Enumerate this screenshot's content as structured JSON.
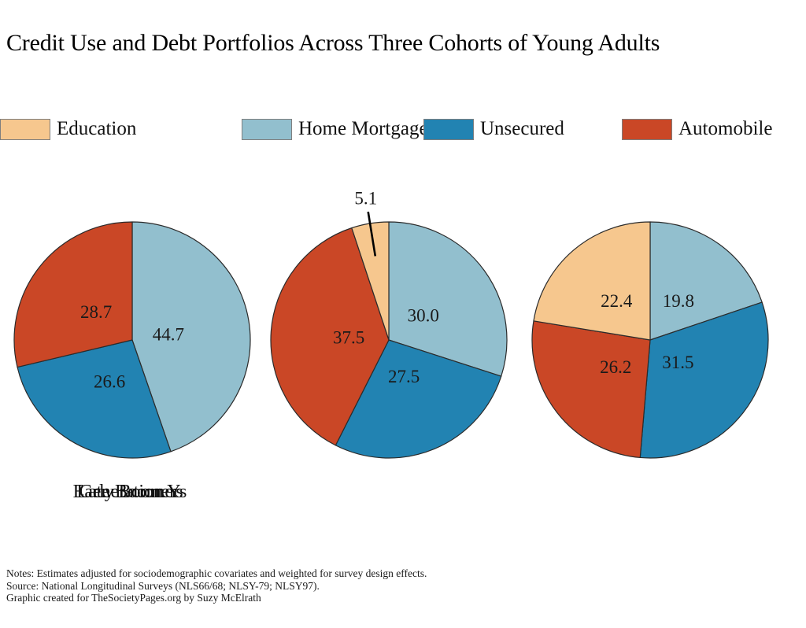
{
  "chart_data": {
    "type": "pie",
    "title": "Credit Use and Debt Portfolios Across Three Cohorts of Young Adults",
    "legend": [
      {
        "label": "Home Mortgage",
        "color": "#92bfce"
      },
      {
        "label": "Unsecured",
        "color": "#2283b2"
      },
      {
        "label": "Automobile",
        "color": "#ca4726"
      },
      {
        "label": "Education",
        "color": "#f6c78e"
      }
    ],
    "slice_border_color": "#2b2b2b",
    "pies": [
      {
        "label": "Early Boomers",
        "slices": [
          {
            "name": "Home Mortgage",
            "value": 44.7,
            "label_r": 0.31
          },
          {
            "name": "Unsecured",
            "value": 26.6,
            "label_r": 0.4
          },
          {
            "name": "Automobile",
            "value": 28.7,
            "label_r": 0.39
          }
        ]
      },
      {
        "label": "Late Boomers",
        "slices": [
          {
            "name": "Home Mortgage",
            "value": 30.0,
            "label_r": 0.36
          },
          {
            "name": "Unsecured",
            "value": 27.5,
            "label_r": 0.33
          },
          {
            "name": "Automobile",
            "value": 37.5,
            "label_r": 0.34
          },
          {
            "name": "Education",
            "value": 5.1,
            "label_outside": true
          }
        ]
      },
      {
        "label": "Generation Y",
        "slices": [
          {
            "name": "Home Mortgage",
            "value": 19.8,
            "label_r": 0.41
          },
          {
            "name": "Unsecured",
            "value": 31.5,
            "label_r": 0.3
          },
          {
            "name": "Automobile",
            "value": 26.2,
            "label_r": 0.37
          },
          {
            "name": "Education",
            "value": 22.4,
            "label_r": 0.44
          }
        ]
      }
    ],
    "layout": {
      "start_angle_deg": 0,
      "direction": "clockwise",
      "legend_position": "top-row",
      "value_format": "one-decimal"
    }
  },
  "notes": {
    "lines": [
      "Notes: Estimates adjusted for sociodemographic covariates and weighted for survey design effects.",
      "Source: National Longitudinal Surveys (NLS66/68; NLSY-79; NLSY97).",
      "Graphic created for TheSocietyPages.org by Suzy McElrath"
    ]
  }
}
